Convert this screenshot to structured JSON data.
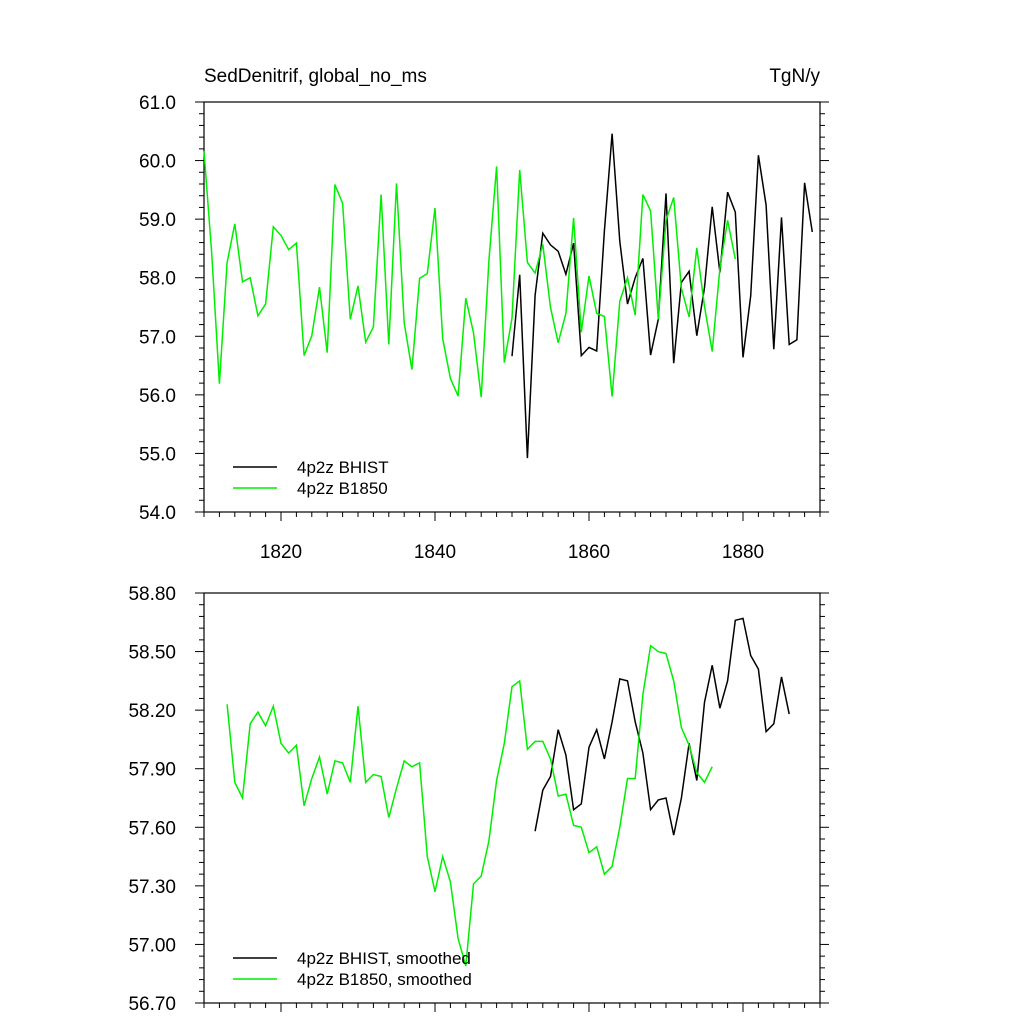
{
  "chart_data": [
    {
      "type": "line",
      "title": "SedDenitrif, global_no_ms",
      "units": "TgN/y",
      "xlim": [
        1810,
        1890
      ],
      "ylim": [
        54.0,
        61.0
      ],
      "xticks": [
        1820,
        1840,
        1860,
        1880
      ],
      "yticks": [
        54.0,
        55.0,
        56.0,
        57.0,
        58.0,
        59.0,
        60.0,
        61.0
      ],
      "ytick_format": 1,
      "legend_placement": "bottom-left",
      "series": [
        {
          "name": "4p2z BHIST",
          "color": "#000000",
          "x_start": 1850,
          "values": [
            56.66,
            58.05,
            54.92,
            57.7,
            58.76,
            58.56,
            58.45,
            58.06,
            58.59,
            56.67,
            56.81,
            56.75,
            58.8,
            60.46,
            58.62,
            57.55,
            58.0,
            58.33,
            56.68,
            57.29,
            59.44,
            56.54,
            57.92,
            58.11,
            57.01,
            57.83,
            59.21,
            58.09,
            59.46,
            59.12,
            56.64,
            57.69,
            60.09,
            59.24,
            56.78,
            59.03,
            56.86,
            56.94,
            59.62,
            58.78
          ]
        },
        {
          "name": "4p2z B1850",
          "color": "#00ee00",
          "x_start": 1810,
          "values": [
            60.16,
            58.42,
            56.19,
            58.26,
            58.92,
            57.93,
            58.0,
            57.35,
            57.55,
            58.87,
            58.72,
            58.48,
            58.59,
            56.67,
            57.01,
            57.84,
            56.72,
            59.59,
            59.27,
            57.29,
            57.86,
            56.9,
            57.16,
            59.42,
            56.86,
            59.61,
            57.23,
            56.43,
            57.99,
            58.07,
            59.19,
            56.96,
            56.28,
            55.98,
            57.65,
            57.06,
            55.96,
            58.29,
            59.9,
            56.55,
            57.31,
            59.84,
            58.26,
            58.08,
            58.57,
            57.49,
            56.89,
            57.39,
            59.02,
            57.07,
            58.03,
            57.39,
            57.34,
            55.97,
            57.6,
            58.0,
            57.36,
            59.42,
            59.14,
            57.29,
            58.98,
            59.37,
            57.82,
            57.33,
            58.51,
            57.51,
            56.74,
            58.16,
            58.98,
            58.32
          ]
        }
      ]
    },
    {
      "type": "line",
      "xlim": [
        1810,
        1890
      ],
      "ylim": [
        56.7,
        58.8
      ],
      "xticks": [
        1820,
        1840,
        1860,
        1880
      ],
      "yticks": [
        56.7,
        57.0,
        57.3,
        57.6,
        57.9,
        58.2,
        58.5,
        58.8
      ],
      "ytick_format": 2,
      "legend_placement": "bottom-left",
      "series": [
        {
          "name": "4p2z BHIST, smoothed",
          "color": "#000000",
          "x_start": 1853,
          "values": [
            57.58,
            57.79,
            57.86,
            58.1,
            57.97,
            57.69,
            57.72,
            58.01,
            58.1,
            57.95,
            58.14,
            58.36,
            58.35,
            58.14,
            57.98,
            57.69,
            57.74,
            57.75,
            57.56,
            57.75,
            58.03,
            57.84,
            58.24,
            58.43,
            58.21,
            58.35,
            58.66,
            58.67,
            58.48,
            58.41,
            58.09,
            58.13,
            58.37,
            58.18
          ]
        },
        {
          "name": "4p2z B1850, smoothed",
          "color": "#00ee00",
          "x_start": 1813,
          "values": [
            58.23,
            57.83,
            57.75,
            58.13,
            58.19,
            58.12,
            58.22,
            58.03,
            57.98,
            58.02,
            57.71,
            57.85,
            57.96,
            57.77,
            57.94,
            57.93,
            57.83,
            58.22,
            57.83,
            57.87,
            57.86,
            57.65,
            57.8,
            57.94,
            57.91,
            57.93,
            57.45,
            57.27,
            57.45,
            57.32,
            57.03,
            56.89,
            57.31,
            57.35,
            57.53,
            57.84,
            58.03,
            58.32,
            58.35,
            58.0,
            58.04,
            58.04,
            57.95,
            57.76,
            57.77,
            57.61,
            57.6,
            57.47,
            57.5,
            57.36,
            57.4,
            57.6,
            57.85,
            57.85,
            58.28,
            58.53,
            58.5,
            58.49,
            58.35,
            58.11,
            58.02,
            57.88,
            57.83,
            57.91
          ]
        }
      ]
    }
  ]
}
